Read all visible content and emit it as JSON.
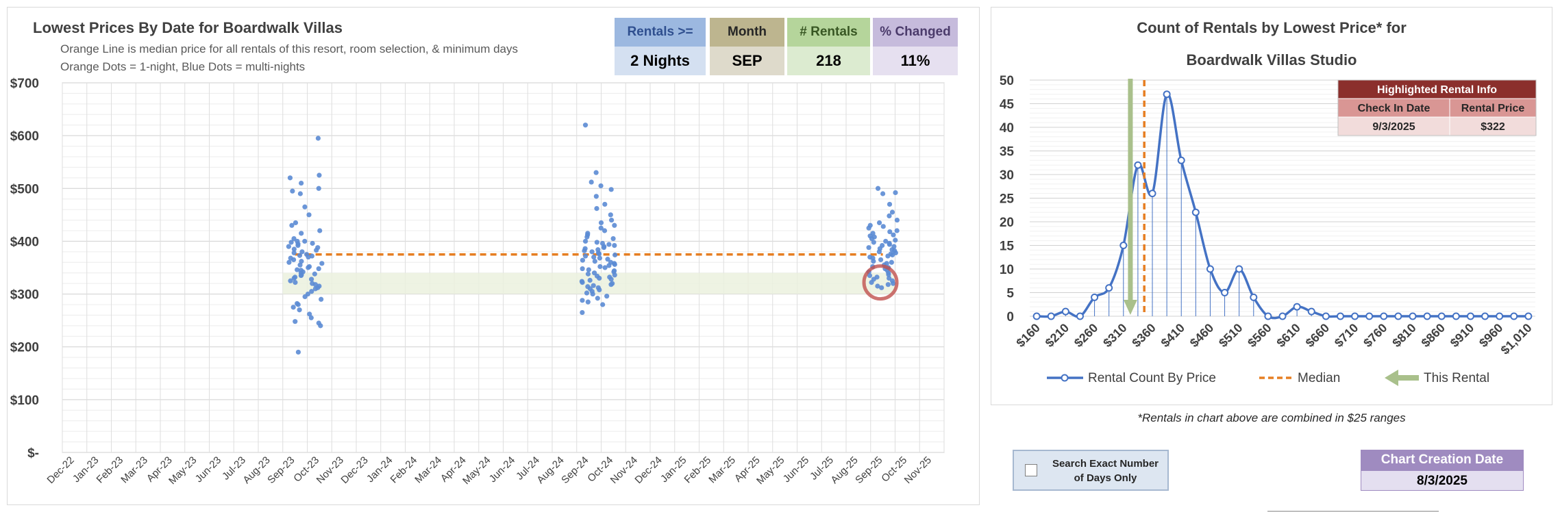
{
  "left_chart": {
    "title": "Lowest Prices By Date for Boardwalk Villas",
    "subtitle_lines": [
      "Orange Line is median price for all rentals of this resort, room selection, & minimum days",
      "Orange Dots = 1-night, Blue Dots = multi-nights"
    ]
  },
  "kpis": [
    {
      "label": "Rentals >=",
      "value": "2 Nights",
      "header_color": "#9cb8e0",
      "value_color": "#d4e0f1",
      "label_color": "#2f4f8f"
    },
    {
      "label": "Month",
      "value": "SEP",
      "header_color": "#bdb58f",
      "value_color": "#dedacb",
      "label_color": "#262626"
    },
    {
      "label": "# Rentals",
      "value": "218",
      "header_color": "#b5d59b",
      "value_color": "#dcebd0",
      "label_color": "#385723"
    },
    {
      "label": "% Changed",
      "value": "11%",
      "header_color": "#c6bbdc",
      "value_color": "#e6e0f0",
      "label_color": "#4b3b6b"
    }
  ],
  "right_chart": {
    "title_line1": "Count of Rentals by Lowest Price* for",
    "title_line2": "Boardwalk Villas Studio",
    "footnote": "*Rentals in chart above are combined in $25 ranges"
  },
  "highlight_table": {
    "title": "Highlighted Rental Info",
    "headers": [
      "Check In Date",
      "Rental Price"
    ],
    "values": [
      "9/3/2025",
      "$322"
    ]
  },
  "search_exact": {
    "label_line1": "Search Exact Number",
    "label_line2": "of Days Only",
    "checked": false
  },
  "creation": {
    "label": "Chart Creation Date",
    "value": "8/3/2025"
  },
  "chart_data": [
    {
      "type": "scatter",
      "title": "Lowest Prices By Date for Boardwalk Villas",
      "x_labels": [
        "Dec-22",
        "Jan-23",
        "Feb-23",
        "Mar-23",
        "Apr-23",
        "May-23",
        "Jun-23",
        "Jul-23",
        "Aug-23",
        "Sep-23",
        "Oct-23",
        "Nov-23",
        "Dec-23",
        "Jan-24",
        "Feb-24",
        "Mar-24",
        "Apr-24",
        "May-24",
        "Jun-24",
        "Jul-24",
        "Aug-24",
        "Sep-24",
        "Oct-24",
        "Nov-24",
        "Dec-24",
        "Jan-25",
        "Feb-25",
        "Mar-25",
        "Apr-25",
        "May-25",
        "Jun-25",
        "Jul-25",
        "Aug-25",
        "Sep-25",
        "Oct-25",
        "Nov-25"
      ],
      "y_ticks": [
        "$-",
        "$100",
        "$200",
        "$300",
        "$400",
        "$500",
        "$600",
        "$700"
      ],
      "ylim": [
        0,
        700
      ],
      "median_price": 375,
      "median_x_range": [
        9.0,
        33.0
      ],
      "band": {
        "x_range": [
          8.5,
          33.5
        ],
        "y_range": [
          300,
          340
        ]
      },
      "highlight": {
        "x": 32.9,
        "y": 322,
        "color": "#c0504d"
      },
      "clusters": [
        {
          "x_center": 9.4,
          "x_spread": 0.7,
          "y": [
            595,
            525,
            520,
            510,
            500,
            495,
            490,
            465,
            450,
            435,
            430,
            420,
            415,
            405,
            400,
            400,
            398,
            396,
            395,
            392,
            390,
            388,
            385,
            383,
            380,
            378,
            375,
            373,
            372,
            370,
            368,
            365,
            362,
            360,
            358,
            355,
            352,
            350,
            348,
            346,
            345,
            342,
            340,
            338,
            336,
            335,
            332,
            330,
            328,
            325,
            322,
            320,
            318,
            315,
            312,
            310,
            305,
            300,
            295,
            290,
            282,
            280,
            275,
            270,
            262,
            255,
            248,
            245,
            240,
            190
          ]
        },
        {
          "x_center": 21.4,
          "x_spread": 0.7,
          "y": [
            620,
            530,
            512,
            505,
            498,
            485,
            470,
            462,
            450,
            440,
            435,
            430,
            425,
            420,
            415,
            412,
            408,
            405,
            400,
            398,
            396,
            394,
            392,
            390,
            388,
            386,
            384,
            382,
            380,
            378,
            376,
            374,
            372,
            370,
            368,
            366,
            364,
            362,
            360,
            358,
            356,
            354,
            352,
            350,
            348,
            346,
            344,
            342,
            340,
            338,
            336,
            334,
            332,
            330,
            328,
            326,
            324,
            322,
            320,
            318,
            316,
            314,
            312,
            310,
            308,
            305,
            302,
            300,
            296,
            292,
            288,
            285,
            280,
            265
          ]
        },
        {
          "x_center": 33.0,
          "x_spread": 0.6,
          "y": [
            500,
            492,
            490,
            470,
            455,
            448,
            440,
            435,
            430,
            428,
            425,
            420,
            418,
            415,
            412,
            410,
            408,
            405,
            402,
            400,
            398,
            396,
            394,
            392,
            390,
            388,
            386,
            384,
            382,
            380,
            378,
            376,
            374,
            372,
            370,
            368,
            365,
            362,
            360,
            358,
            355,
            352,
            350,
            348,
            345,
            342,
            340,
            337,
            335,
            332,
            330,
            328,
            325,
            322,
            320,
            318,
            315,
            312
          ]
        }
      ]
    },
    {
      "type": "line",
      "title": "Count of Rentals by Lowest Price* for Boardwalk Villas Studio",
      "x_labels": [
        "$160",
        "$210",
        "$260",
        "$310",
        "$360",
        "$410",
        "$460",
        "$510",
        "$560",
        "$610",
        "$660",
        "$710",
        "$760",
        "$810",
        "$860",
        "$910",
        "$960",
        "$1,010"
      ],
      "x": [
        160,
        185,
        210,
        235,
        260,
        285,
        310,
        335,
        360,
        385,
        410,
        435,
        460,
        485,
        510,
        535,
        560,
        585,
        610,
        635,
        660,
        685,
        710,
        735,
        760,
        785,
        810,
        835,
        860,
        885,
        910,
        935,
        960,
        985,
        1010
      ],
      "series": [
        {
          "name": "Rental Count By Price",
          "values": [
            0,
            0,
            1,
            0,
            4,
            6,
            15,
            32,
            26,
            47,
            33,
            22,
            10,
            5,
            10,
            4,
            0,
            0,
            2,
            1,
            0,
            0,
            0,
            0,
            0,
            0,
            0,
            0,
            0,
            0,
            0,
            0,
            0,
            0,
            0
          ]
        }
      ],
      "ylim": [
        0,
        50
      ],
      "y_ticks": [
        0,
        5,
        10,
        15,
        20,
        25,
        30,
        35,
        40,
        45,
        50
      ],
      "median": 346,
      "this_rental": 322,
      "legend": [
        "Rental Count By Price",
        "Median",
        "This Rental"
      ],
      "legend_position": "bottom"
    }
  ],
  "colors": {
    "blue_series": "#4472c4",
    "dot_blue": "#5b8bd4",
    "median_orange": "#e67e22",
    "this_rental_green": "#a9c08b",
    "grid": "#d9d9d9",
    "table_dark_red": "#8b2f2c",
    "table_med_red": "#d99694",
    "table_light_red": "#f2dcdb"
  }
}
